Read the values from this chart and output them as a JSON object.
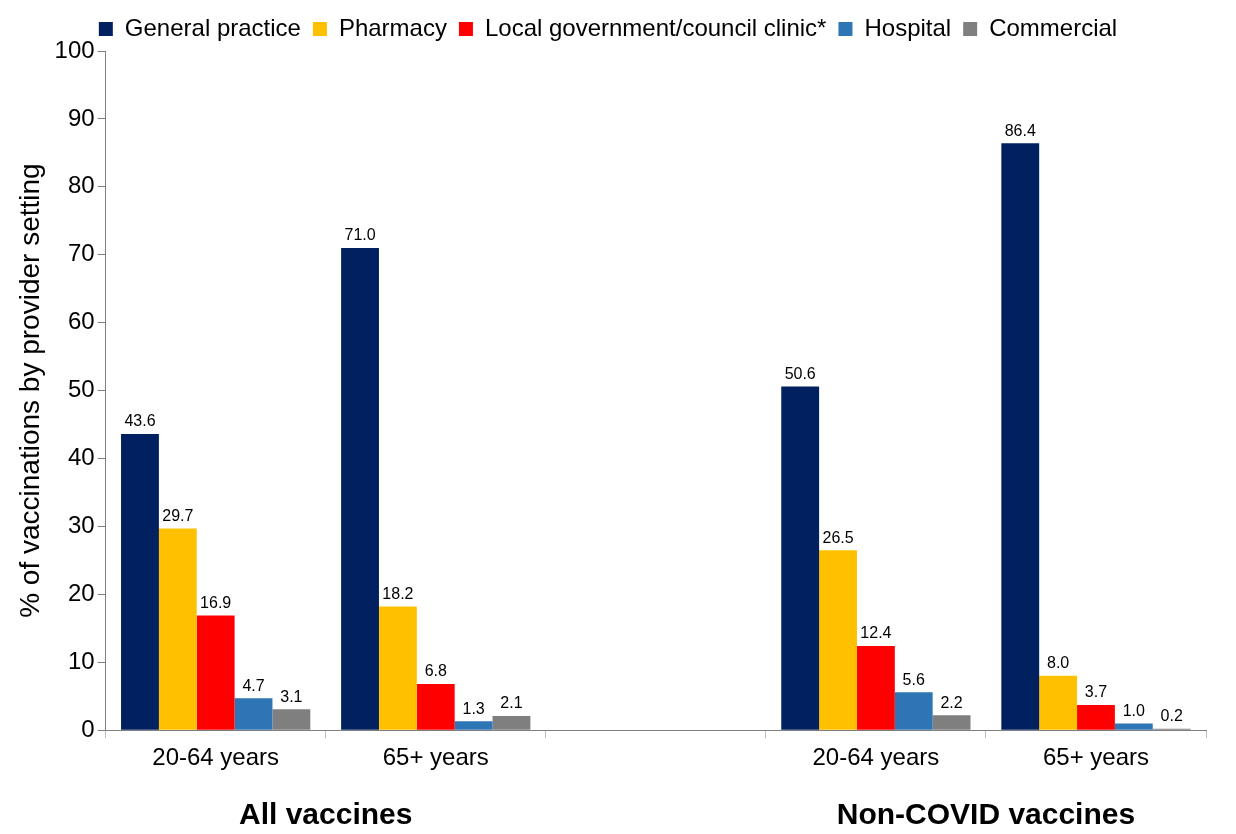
{
  "chart_data": {
    "type": "bar",
    "ylabel": "% of vaccinations by provider setting",
    "categories": [
      "20-64 years",
      "65+ years",
      null,
      "20-64 years",
      "65+ years"
    ],
    "series": [
      {
        "name": "General practice",
        "color": "#002060",
        "values": [
          43.6,
          71.0,
          null,
          50.6,
          86.4
        ],
        "value_labels": [
          "43.6",
          "71.0",
          null,
          "50.6",
          "86.4"
        ]
      },
      {
        "name": "Pharmacy",
        "color": "#ffc000",
        "values": [
          29.7,
          18.2,
          null,
          26.5,
          8.0
        ],
        "value_labels": [
          "29.7",
          "18.2",
          null,
          "26.5",
          "8.0"
        ]
      },
      {
        "name": "Local government/council clinic*",
        "color": "#ff0000",
        "values": [
          16.9,
          6.8,
          null,
          12.4,
          3.7
        ],
        "value_labels": [
          "16.9",
          "6.8",
          null,
          "12.4",
          "3.7"
        ]
      },
      {
        "name": "Hospital",
        "color": "#2e75b6",
        "values": [
          4.7,
          1.3,
          null,
          5.6,
          1.0
        ],
        "value_labels": [
          "4.7",
          "1.3",
          null,
          "5.6",
          "1.0"
        ]
      },
      {
        "name": "Commercial",
        "color": "#7f7f7f",
        "values": [
          3.1,
          2.1,
          null,
          2.2,
          0.2
        ],
        "value_labels": [
          "3.1",
          "2.1",
          null,
          "2.2",
          "0.2"
        ]
      }
    ],
    "ylim": [
      0,
      100
    ],
    "yticks": [
      0,
      10,
      20,
      30,
      40,
      50,
      60,
      70,
      80,
      90,
      100
    ],
    "legend": "top",
    "grid": false,
    "annotations": [
      "All vaccines",
      "Non-COVID vaccines"
    ]
  }
}
